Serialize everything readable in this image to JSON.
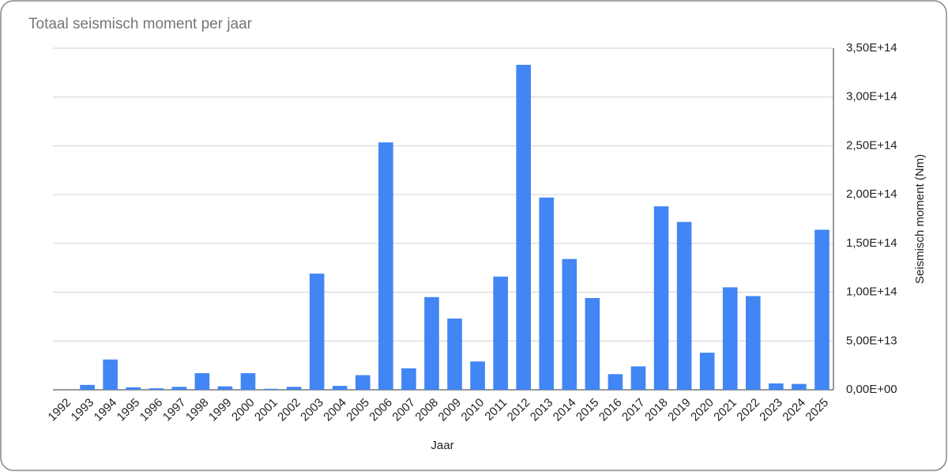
{
  "chart_data": {
    "type": "bar",
    "title": "Totaal seismisch moment per jaar",
    "x_label": "Jaar",
    "y_label": "Seismisch moment (Nm)",
    "axis_side": "right",
    "categories": [
      "1992",
      "1993",
      "1994",
      "1995",
      "1996",
      "1997",
      "1998",
      "1999",
      "2000",
      "2001",
      "2002",
      "2003",
      "2004",
      "2005",
      "2006",
      "2007",
      "2008",
      "2009",
      "2010",
      "2011",
      "2012",
      "2013",
      "2014",
      "2015",
      "2016",
      "2017",
      "2018",
      "2019",
      "2020",
      "2021",
      "2022",
      "2023",
      "2024",
      "2025"
    ],
    "values": [
      0,
      5000000000000.0,
      31000000000000.0,
      2500000000000.0,
      1500000000000.0,
      3000000000000.0,
      17000000000000.0,
      3500000000000.0,
      17000000000000.0,
      1000000000000.0,
      3000000000000.0,
      119000000000000.0,
      4000000000000.0,
      15000000000000.0,
      253500000000000.0,
      22000000000000.0,
      95000000000000.0,
      73000000000000.0,
      29000000000000.0,
      116000000000000.0,
      333000000000000.0,
      197000000000000.0,
      134000000000000.0,
      94000000000000.0,
      16000000000000.0,
      24000000000000.0,
      188000000000000.0,
      172000000000000.0,
      38000000000000.0,
      105000000000000.0,
      96000000000000.0,
      6500000000000.0,
      6000000000000.0,
      164000000000000.0
    ],
    "color": "#4285f4",
    "ylim": [
      0,
      350000000000000.0
    ],
    "yticks": [
      {
        "value": 0,
        "label": "0,00E+00"
      },
      {
        "value": 50000000000000.0,
        "label": "5,00E+13"
      },
      {
        "value": 100000000000000.0,
        "label": "1,00E+14"
      },
      {
        "value": 150000000000000.0,
        "label": "1,50E+14"
      },
      {
        "value": 200000000000000.0,
        "label": "2,00E+14"
      },
      {
        "value": 250000000000000.0,
        "label": "2,50E+14"
      },
      {
        "value": 300000000000000.0,
        "label": "3,00E+14"
      },
      {
        "value": 350000000000000.0,
        "label": "3,50E+14"
      }
    ],
    "grid": true
  }
}
